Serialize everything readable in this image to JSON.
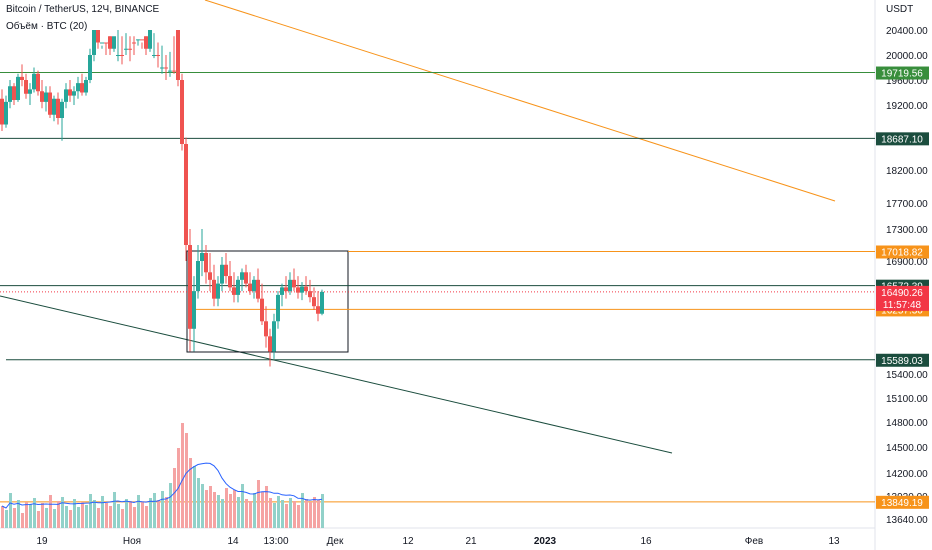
{
  "header": {
    "symbol": "Bitcoin / TetherUS, 12Ч, BINANCE",
    "indicator": "Объём · BTC (20)",
    "currency": "USDT"
  },
  "chart_data": {
    "type": "candlestick",
    "ylim": [
      13640,
      21000
    ],
    "y_ticks": [
      20400,
      20000,
      19600,
      19200,
      18200,
      17700,
      17300,
      16900,
      15400,
      15100,
      14800,
      14500,
      14200,
      13920,
      13640
    ],
    "x_ticks": [
      "19",
      "Ноя",
      "14",
      "13:00",
      "Дек",
      "12",
      "21",
      "2023",
      "16",
      "Фев",
      "13"
    ],
    "price_lines": [
      {
        "value": 19719.56,
        "label": "19719.56",
        "color": "#388e3c",
        "label_bg": "#388e3c"
      },
      {
        "value": 18687.1,
        "label": "18687.10",
        "color": "#1b4d3e",
        "label_bg": "#1b4d3e"
      },
      {
        "value": 17018.82,
        "label": "17018.82",
        "color": "#f7931a",
        "label_bg": "#f7931a"
      },
      {
        "value": 16572.39,
        "label": "16572.39",
        "color": "#1b4d3e",
        "label_bg": "#1b4d3e"
      },
      {
        "value": 16257.3,
        "label": "16257.30",
        "color": "#f7931a",
        "label_bg": "#f7931a"
      },
      {
        "value": 15589.03,
        "label": "15589.03",
        "color": "#1b4d3e",
        "label_bg": "#1b4d3e"
      },
      {
        "value": 13849.19,
        "label": "13849.19",
        "color": "#f7931a",
        "label_bg": "#f7931a"
      }
    ],
    "current_price": {
      "value": 16490.26,
      "label": "16490.26",
      "countdown": "11:57:48",
      "color": "#f23645"
    },
    "colors": {
      "up": "#26a69a",
      "down": "#ef5350",
      "up_vol": "#92d1c9",
      "down_vol": "#f5a3a3",
      "ma": "#2962ff"
    }
  }
}
